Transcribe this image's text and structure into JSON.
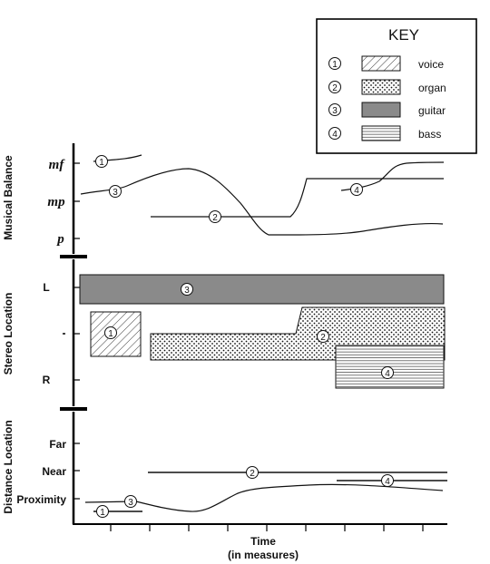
{
  "key": {
    "title": "KEY",
    "items": [
      {
        "num": "1",
        "label": "voice",
        "pattern": "hatch"
      },
      {
        "num": "2",
        "label": "organ",
        "pattern": "dots"
      },
      {
        "num": "3",
        "label": "guitar",
        "pattern": "gray"
      },
      {
        "num": "4",
        "label": "bass",
        "pattern": "lines"
      }
    ]
  },
  "sections": {
    "balance": {
      "title": "Musical Balance",
      "levels": {
        "mf": "mf",
        "mp": "mp",
        "p": "p"
      }
    },
    "stereo": {
      "title": "Stereo Location",
      "levels": {
        "left": "L",
        "right": "R"
      }
    },
    "distance": {
      "title": "Distance Location",
      "levels": {
        "far": "Far",
        "near": "Near",
        "proximity": "Proximity"
      }
    }
  },
  "xaxis": {
    "label": "Time",
    "sublabel": "(in measures)"
  },
  "markers": {
    "one": "1",
    "two": "2",
    "three": "3",
    "four": "4"
  },
  "colors": {
    "guitar": "#8a8a8a",
    "line": "#111111",
    "frame": "#000000"
  }
}
